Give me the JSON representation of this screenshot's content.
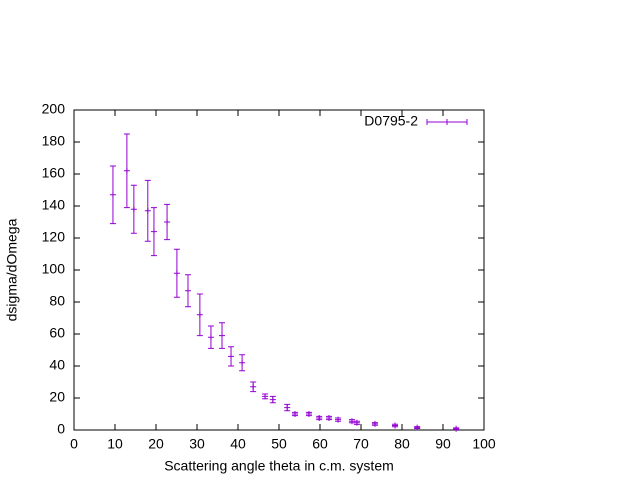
{
  "chart_data": {
    "type": "scatter",
    "x_label": "Scattering angle theta in c.m. system",
    "y_label": "dsigma/dOmega",
    "xlim": [
      0,
      100
    ],
    "ylim": [
      0,
      200
    ],
    "xticks": [
      0,
      10,
      20,
      30,
      40,
      50,
      60,
      70,
      80,
      90,
      100
    ],
    "yticks": [
      0,
      20,
      40,
      60,
      80,
      100,
      120,
      140,
      160,
      180,
      200
    ],
    "legend": "top-right",
    "series": [
      {
        "name": "D0795-2",
        "color": "#9400d3",
        "x": [
          9.5,
          12.9,
          14.6,
          18,
          19.5,
          22.7,
          25.1,
          27.8,
          30.7,
          33.4,
          36.1,
          38.3,
          41,
          43.7,
          46.6,
          48.5,
          52,
          53.9,
          57.3,
          59.8,
          62.2,
          64.4,
          67.8,
          69,
          73.4,
          78.3,
          83.7,
          93.2
        ],
        "values": [
          147,
          162,
          138,
          137,
          124,
          130,
          98,
          87,
          72,
          58,
          59,
          46,
          42,
          27,
          21,
          19,
          14,
          10,
          10,
          7.5,
          7.5,
          6.5,
          5.5,
          4.5,
          3.8,
          2.8,
          1.5,
          0.8
        ],
        "errors": [
          18,
          23,
          15,
          19,
          15,
          11,
          15,
          10,
          13,
          7,
          8,
          6,
          5,
          3,
          1.5,
          2,
          2,
          1,
          1,
          1,
          1,
          1,
          1,
          1,
          0.8,
          0.8,
          0.6,
          0.5
        ]
      }
    ]
  }
}
